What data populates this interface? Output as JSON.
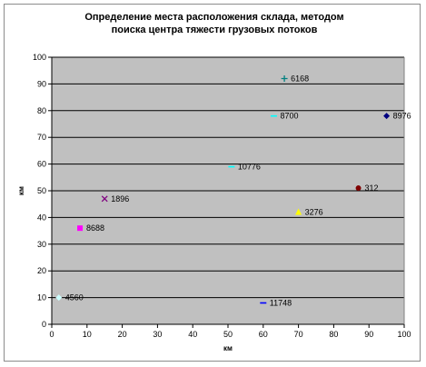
{
  "chart_data": {
    "type": "scatter",
    "title_lines": [
      "Определение места расположения склада, методом",
      "поиска центра тяжести грузовых потоков"
    ],
    "xlabel": "км",
    "ylabel": "км",
    "xlim": [
      0,
      100
    ],
    "ylim": [
      0,
      100
    ],
    "x_ticks": [
      0,
      10,
      20,
      30,
      40,
      50,
      60,
      70,
      80,
      90,
      100
    ],
    "y_ticks": [
      0,
      10,
      20,
      30,
      40,
      50,
      60,
      70,
      80,
      90,
      100
    ],
    "grid": "horizontal",
    "plot_background": "#c0c0c0",
    "legend": "none",
    "points": [
      {
        "x": 2,
        "y": 10,
        "label": "4560",
        "color": "#ccffff",
        "marker": "diamond"
      },
      {
        "x": 8,
        "y": 36,
        "label": "8688",
        "color": "#ff00ff",
        "marker": "square"
      },
      {
        "x": 15,
        "y": 47,
        "label": "1896",
        "color": "#800080",
        "marker": "x"
      },
      {
        "x": 51,
        "y": 59,
        "label": "10776",
        "color": "#00ffff",
        "marker": "dash"
      },
      {
        "x": 60,
        "y": 8,
        "label": "11748",
        "color": "#0000ff",
        "marker": "dash"
      },
      {
        "x": 63,
        "y": 78,
        "label": "8700",
        "color": "#00ffff",
        "marker": "dash"
      },
      {
        "x": 66,
        "y": 92,
        "label": "6168",
        "color": "#008080",
        "marker": "plus"
      },
      {
        "x": 70,
        "y": 42,
        "label": "3276",
        "color": "#ffff00",
        "marker": "triangle"
      },
      {
        "x": 87,
        "y": 51,
        "label": "312",
        "color": "#800000",
        "marker": "circle"
      },
      {
        "x": 95,
        "y": 78,
        "label": "8976",
        "color": "#000080",
        "marker": "diamond"
      }
    ]
  }
}
